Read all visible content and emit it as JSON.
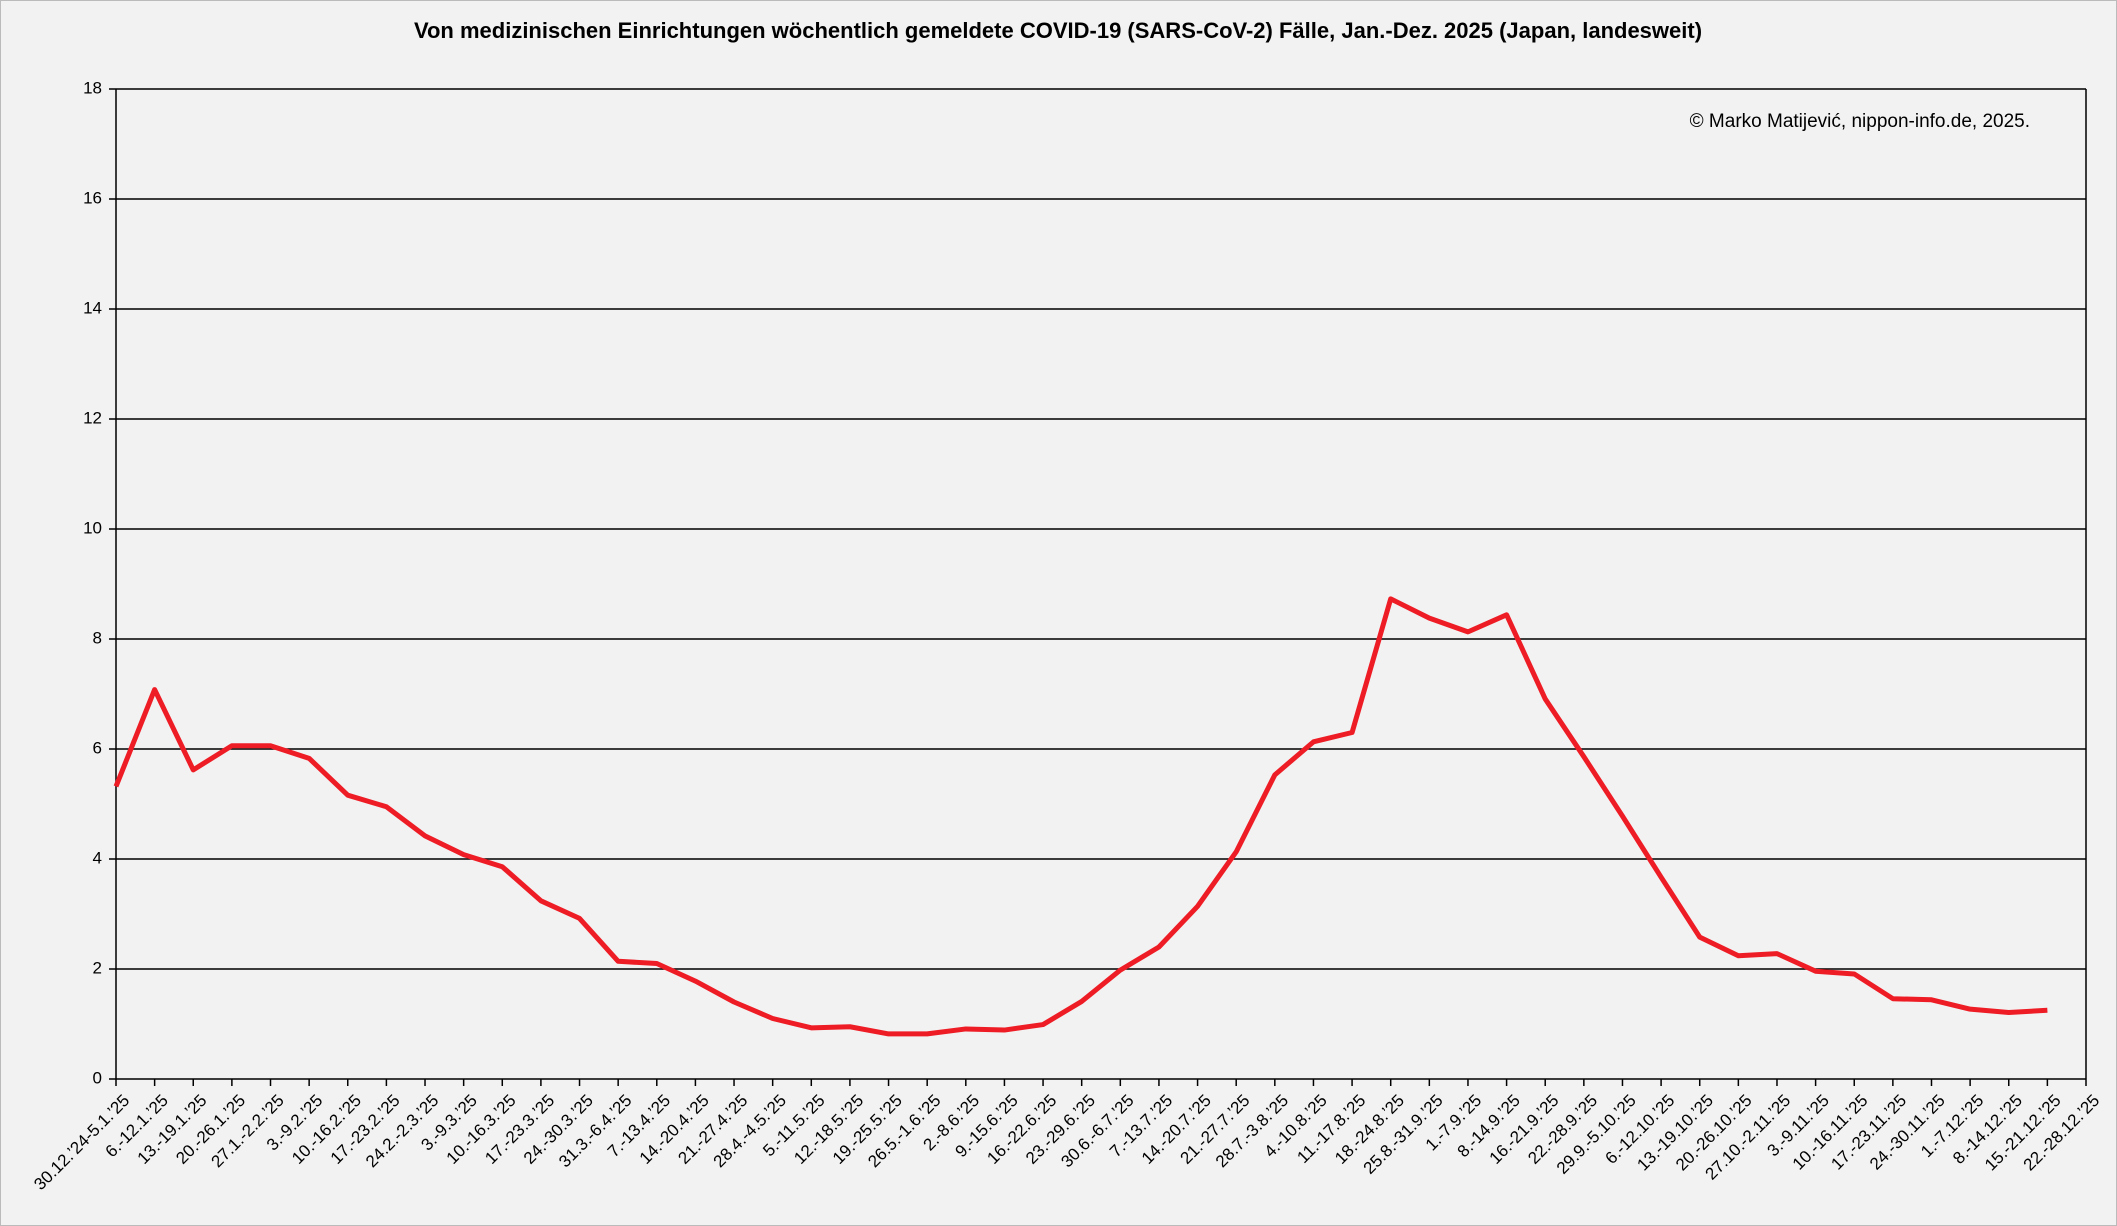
{
  "chart_data": {
    "type": "line",
    "title": "Von medizinischen Einrichtungen wöchentlich gemeldete COVID-19 (SARS-CoV-2) Fälle, Jan.-Dez. 2025 (Japan, landesweit)",
    "annotation": "© Marko Matijević, nippon-info.de, 2025.",
    "categories": [
      "30.12.’24-5.1.’25",
      "6.-12.1.’25",
      "13.-19.1.’25",
      "20.-26.1.’25",
      "27.1.-2.2.’25",
      "3.-9.2.’25",
      "10.-16.2.’25",
      "17.-23.2.’25",
      "24.2.-2.3.’25",
      "3.-9.3.’25",
      "10.-16.3.’25",
      "17.-23.3.’25",
      "24.-30.3.’25",
      "31.3.-6.4.’25",
      "7.-13.4.’25",
      "14.-20.4.’25",
      "21.-27.4.’25",
      "28.4.-4.5.’25",
      "5.-11.5.’25",
      "12.-18.5.’25",
      "19.-25.5.’25",
      "26.5.-1.6.’25",
      "2.-8.6.’25",
      "9.-15.6.’25",
      "16.-22.6.’25",
      "23.-29.6.’25",
      "30.6.-6.7.’25",
      "7.-13.7.’25",
      "14.-20.7.’25",
      "21.-27.7.’25",
      "28.7.-3.8.’25",
      "4.-10.8.’25",
      "11.-17.8.’25",
      "18.-24.8.’25",
      "25.8.-31.9.’25",
      "1.-7.9.’25",
      "8.-14.9.’25",
      "16.-21.9.’25",
      "22.-28.9.’25",
      "29.9.-5.10.’25",
      "6.-12.10.’25",
      "13.-19.10.’25",
      "20.-26.10.’25",
      "27.10.-2.11.’25",
      "3.-9.11.’25",
      "10.-16.11.’25",
      "17.-23.11.’25",
      "24.-30.11.’25",
      "1.-7.12.’25",
      "8.-14.12.’25",
      "15.-21.12.’25",
      "22.-28.12.’25"
    ],
    "series": [
      {
        "name": "COVID-19",
        "color": "#ee1c25",
        "values": [
          5.32,
          7.08,
          5.62,
          6.06,
          6.06,
          5.83,
          5.16,
          4.95,
          4.42,
          4.08,
          3.86,
          3.24,
          2.92,
          2.14,
          2.1,
          1.78,
          1.4,
          1.1,
          0.93,
          0.95,
          0.82,
          0.82,
          0.91,
          0.89,
          0.99,
          1.41,
          1.98,
          2.4,
          3.14,
          4.13,
          5.53,
          6.13,
          6.3,
          8.73,
          8.38,
          8.13,
          8.44,
          6.91,
          5.86,
          4.78,
          3.67,
          2.58,
          2.24,
          2.28,
          1.96,
          1.91,
          1.46,
          1.44,
          1.27,
          1.21,
          1.25,
          null
        ]
      }
    ],
    "ylim": [
      0,
      18
    ],
    "yticks": [
      0,
      2,
      4,
      6,
      8,
      10,
      12,
      14,
      16,
      18
    ],
    "grid": true
  }
}
